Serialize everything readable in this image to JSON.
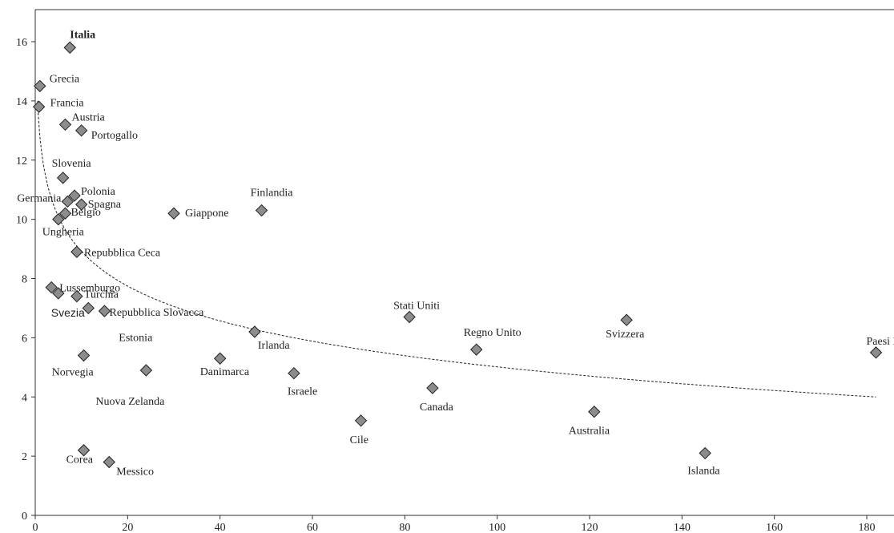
{
  "chart_data": {
    "type": "scatter",
    "title": "",
    "xlabel": "",
    "ylabel": "",
    "xlim": [
      0,
      185
    ],
    "ylim": [
      0,
      17
    ],
    "xticks": [
      0,
      20,
      40,
      60,
      80,
      100,
      120,
      140,
      160,
      180
    ],
    "yticks": [
      0,
      2,
      4,
      6,
      8,
      10,
      12,
      14,
      16
    ],
    "grid": false,
    "trendline": {
      "type": "logarithmic",
      "style": "dotted",
      "from": [
        0.5,
        14.0
      ],
      "to": [
        182,
        4.0
      ]
    },
    "points": [
      {
        "label": "Italia",
        "x": 7.5,
        "y": 15.8
      },
      {
        "label": "Grecia",
        "x": 1,
        "y": 14.5
      },
      {
        "label": "Francia",
        "x": 0.8,
        "y": 13.8
      },
      {
        "label": "Austria",
        "x": 6.5,
        "y": 13.2
      },
      {
        "label": "Portogallo",
        "x": 10,
        "y": 13.0
      },
      {
        "label": "Slovenia",
        "x": 6,
        "y": 11.4
      },
      {
        "label": "Polonia",
        "x": 8.5,
        "y": 10.8
      },
      {
        "label": "Germania",
        "x": 7,
        "y": 10.6
      },
      {
        "label": "Spagna",
        "x": 10,
        "y": 10.5
      },
      {
        "label": "Belgio",
        "x": 6.5,
        "y": 10.2
      },
      {
        "label": "Ungheria",
        "x": 5,
        "y": 10.0
      },
      {
        "label": "Giappone",
        "x": 30,
        "y": 10.2
      },
      {
        "label": "Finlandia",
        "x": 49,
        "y": 10.3
      },
      {
        "label": "Repubblica Ceca",
        "x": 9,
        "y": 8.9
      },
      {
        "label": "Lussemburgo",
        "x": 3.5,
        "y": 7.7
      },
      {
        "label": "Turchia",
        "x": 9,
        "y": 7.4
      },
      {
        "label": "Svezia",
        "x": 5,
        "y": 7.5
      },
      {
        "label": "Repubblica Slovacca",
        "x": 15,
        "y": 6.9
      },
      {
        "label": "Estonia",
        "x": 11.5,
        "y": 7.0
      },
      {
        "label": "Irlanda",
        "x": 47.5,
        "y": 6.2
      },
      {
        "label": "Stati Uniti",
        "x": 81,
        "y": 6.7
      },
      {
        "label": "Regno Unito",
        "x": 95.5,
        "y": 5.6
      },
      {
        "label": "Svizzera",
        "x": 128,
        "y": 6.6
      },
      {
        "label": "Paesi Bassi",
        "x": 182,
        "y": 5.5
      },
      {
        "label": "Norvegia",
        "x": 10.5,
        "y": 5.4
      },
      {
        "label": "Danimarca",
        "x": 40,
        "y": 5.3
      },
      {
        "label": "Nuova Zelanda",
        "x": 24,
        "y": 4.9
      },
      {
        "label": "Israele",
        "x": 56,
        "y": 4.8
      },
      {
        "label": "Canada",
        "x": 86,
        "y": 4.3
      },
      {
        "label": "Australia",
        "x": 121,
        "y": 3.5
      },
      {
        "label": "Cile",
        "x": 70.5,
        "y": 3.2
      },
      {
        "label": "Islanda",
        "x": 145,
        "y": 2.1
      },
      {
        "label": "Corea",
        "x": 10.5,
        "y": 2.2
      },
      {
        "label": "Messico",
        "x": 16,
        "y": 1.8
      }
    ]
  }
}
